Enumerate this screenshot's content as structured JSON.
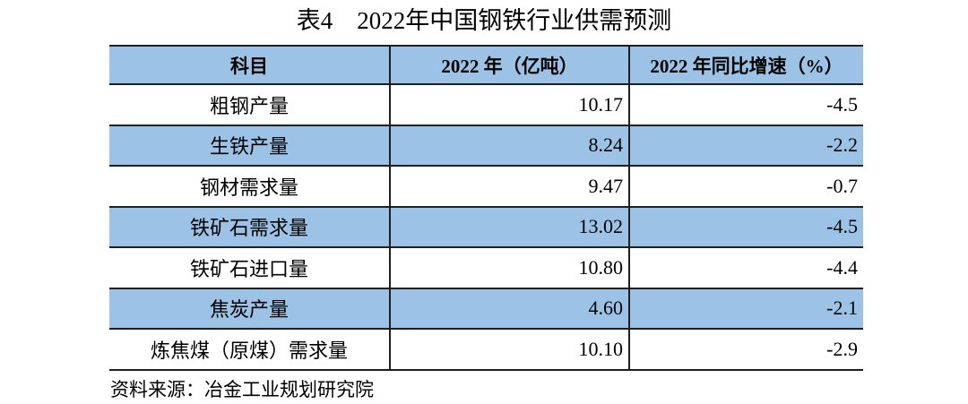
{
  "title": "表4　2022年中国钢铁行业供需预测",
  "table": {
    "headers": [
      "科目",
      "2022 年（亿吨）",
      "2022 年同比增速（%）"
    ],
    "rows": [
      {
        "label": "粗钢产量",
        "value": "10.17",
        "growth": "-4.5"
      },
      {
        "label": "生铁产量",
        "value": "8.24",
        "growth": "-2.2"
      },
      {
        "label": "钢材需求量",
        "value": "9.47",
        "growth": "-0.7"
      },
      {
        "label": "铁矿石需求量",
        "value": "13.02",
        "growth": "-4.5"
      },
      {
        "label": "铁矿石进口量",
        "value": "10.80",
        "growth": "-4.4"
      },
      {
        "label": "焦炭产量",
        "value": "4.60",
        "growth": "-2.1"
      },
      {
        "label": "炼焦煤（原煤）需求量",
        "value": "10.10",
        "growth": "-2.9"
      }
    ]
  },
  "source_note": "资料来源：冶金工业规划研究院",
  "colors": {
    "row_highlight": "#9CC3E6",
    "border": "#1F1F1F",
    "text": "#000000",
    "background": "#FFFFFF"
  },
  "chart_data": {
    "type": "table",
    "title": "表4　2022年中国钢铁行业供需预测",
    "columns": [
      "科目",
      "2022 年（亿吨）",
      "2022 年同比增速（%）"
    ],
    "rows": [
      [
        "粗钢产量",
        10.17,
        -4.5
      ],
      [
        "生铁产量",
        8.24,
        -2.2
      ],
      [
        "钢材需求量",
        9.47,
        -0.7
      ],
      [
        "铁矿石需求量",
        13.02,
        -4.5
      ],
      [
        "铁矿石进口量",
        10.8,
        -4.4
      ],
      [
        "焦炭产量",
        4.6,
        -2.1
      ],
      [
        "炼焦煤（原煤）需求量",
        10.1,
        -2.9
      ]
    ],
    "source": "资料来源：冶金工业规划研究院"
  }
}
